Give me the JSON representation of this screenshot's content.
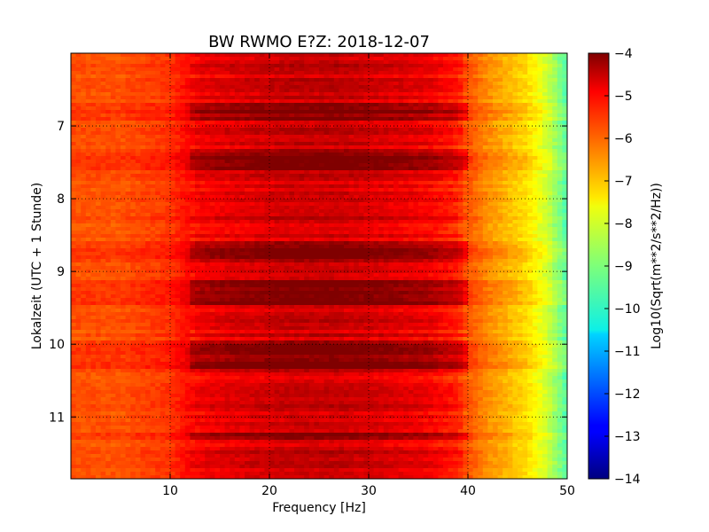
{
  "chart_data": {
    "type": "heatmap",
    "title": "BW RWMO E?Z: 2018-12-07",
    "xlabel": "Frequency [Hz]",
    "ylabel": "Lokalzeit (UTC + 1 Stunde)",
    "xlim": [
      0,
      50
    ],
    "ylim": [
      11.85,
      6.0
    ],
    "xticks": [
      10,
      20,
      30,
      40,
      50
    ],
    "yticks": [
      7,
      8,
      9,
      10,
      11
    ],
    "grid": true,
    "colormap": "jet",
    "colorbar": {
      "label": "Log10(Sqrt(m**2/s**2/Hz))",
      "range": [
        -14,
        -4
      ],
      "ticks": [
        -4,
        -5,
        -6,
        -7,
        -8,
        -9,
        -10,
        -11,
        -12,
        -13,
        -14
      ]
    },
    "band_profile": {
      "frequency_hz": [
        0,
        5,
        10,
        13,
        17,
        22,
        27,
        32,
        36,
        39,
        40,
        42,
        44,
        46,
        48,
        50
      ],
      "log_amplitude": [
        -6.0,
        -6.0,
        -5.7,
        -5.0,
        -4.8,
        -4.6,
        -4.6,
        -4.8,
        -5.0,
        -5.4,
        -6.0,
        -6.6,
        -7.0,
        -7.4,
        -8.2,
        -9.4
      ]
    },
    "loud_intervals_hours": [
      [
        6.7,
        6.95
      ],
      [
        7.3,
        7.6
      ],
      [
        8.6,
        8.9
      ],
      [
        9.1,
        9.45
      ],
      [
        9.95,
        10.35
      ],
      [
        11.2,
        11.3
      ]
    ]
  }
}
